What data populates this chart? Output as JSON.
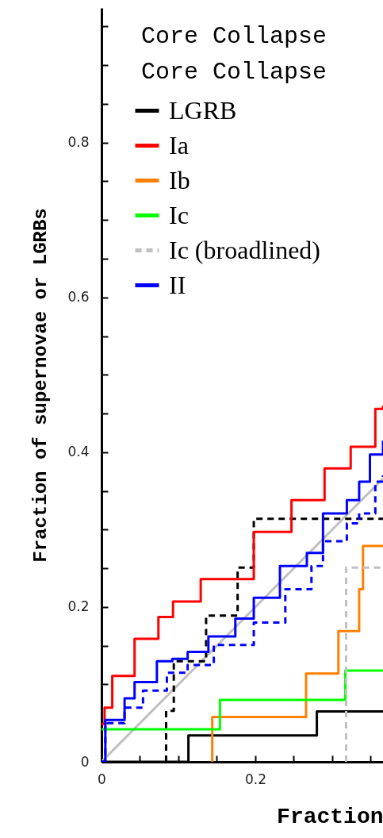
{
  "chart_data": {
    "type": "step",
    "xlabel": "Fraction",
    "ylabel": "Fraction of supernovae or LGRBs",
    "annotations": [
      "Core Collapse",
      "Core Collapse"
    ],
    "xlim": [
      0,
      0.366
    ],
    "ylim": [
      0,
      0.974
    ],
    "xticks": [
      0,
      {
        "value": 0.05,
        "label": null
      },
      {
        "value": 0.1,
        "label": null
      },
      {
        "value": 0.15,
        "label": null
      },
      0.2,
      {
        "value": 0.25,
        "label": null
      },
      {
        "value": 0.3,
        "label": null
      },
      {
        "value": 0.35,
        "label": null
      }
    ],
    "yticks": [
      0,
      {
        "value": 0.05,
        "label": null
      },
      {
        "value": 0.1,
        "label": null
      },
      {
        "value": 0.15,
        "label": null
      },
      0.2,
      {
        "value": 0.25,
        "label": null
      },
      {
        "value": 0.3,
        "label": null
      },
      {
        "value": 0.35,
        "label": null
      },
      0.4,
      {
        "value": 0.45,
        "label": null
      },
      {
        "value": 0.5,
        "label": null
      },
      {
        "value": 0.55,
        "label": null
      },
      0.6,
      {
        "value": 0.65,
        "label": null
      },
      {
        "value": 0.7,
        "label": null
      },
      {
        "value": 0.75,
        "label": null
      },
      0.8,
      {
        "value": 0.85,
        "label": null
      },
      {
        "value": 0.9,
        "label": null
      },
      {
        "value": 0.95,
        "label": null
      }
    ],
    "grid": false,
    "legend": "top left",
    "series": [
      {
        "type": "line",
        "color": "#c0c0c0",
        "line_style": "solid",
        "x": [
          0,
          0.366
        ],
        "values": [
          0,
          0.366
        ]
      },
      {
        "color": "#000000",
        "line_style": "dashed",
        "x": [
          0.084,
          0.084,
          0.094,
          0.136,
          0.177,
          0.198,
          0.366
        ],
        "values": [
          0,
          0.066,
          0.13,
          0.189,
          0.251,
          0.314,
          0.314
        ]
      },
      {
        "color": "#0000ff",
        "line_style": "dashed",
        "x": [
          0,
          0.005,
          0.03,
          0.054,
          0.085,
          0.112,
          0.146,
          0.198,
          0.239,
          0.273,
          0.288,
          0.319,
          0.335,
          0.356,
          0.366
        ],
        "values": [
          0,
          0.05,
          0.07,
          0.092,
          0.115,
          0.125,
          0.151,
          0.18,
          0.223,
          0.253,
          0.285,
          0.308,
          0.321,
          0.362,
          0.37
        ]
      },
      {
        "name": "LGRB",
        "color": "#000000",
        "line_style": "solid",
        "x": [
          0,
          0.113,
          0.28,
          0.366
        ],
        "values": [
          0,
          0.034,
          0.065,
          0.065
        ]
      },
      {
        "name": "Ia",
        "color": "#ff0000",
        "line_style": "solid",
        "x": [
          0,
          0.004,
          0.014,
          0.043,
          0.074,
          0.093,
          0.129,
          0.198,
          0.247,
          0.29,
          0.324,
          0.356,
          0.366
        ],
        "values": [
          0.049,
          0.07,
          0.111,
          0.159,
          0.187,
          0.207,
          0.236,
          0.297,
          0.338,
          0.379,
          0.407,
          0.456,
          0.46
        ]
      },
      {
        "name": "Ib",
        "color": "#ff8000",
        "line_style": "solid",
        "x": [
          0.144,
          0.144,
          0.266,
          0.308,
          0.335,
          0.34,
          0.366
        ],
        "values": [
          0,
          0.058,
          0.114,
          0.169,
          0.223,
          0.279,
          0.279
        ]
      },
      {
        "name": "Ic",
        "color": "#00ff00",
        "line_style": "solid",
        "x": [
          0,
          0.154,
          0.317,
          0.366
        ],
        "values": [
          0.042,
          0.08,
          0.118,
          0.118
        ]
      },
      {
        "name": "Ic (broadlined)",
        "color": "#c0c0c0",
        "line_style": "dashed",
        "x": [
          0.318,
          0.318,
          0.366
        ],
        "values": [
          0,
          0.251,
          0.251
        ]
      },
      {
        "name": "II",
        "color": "#0000ff",
        "line_style": "solid",
        "x": [
          0,
          0.005,
          0.03,
          0.043,
          0.072,
          0.092,
          0.112,
          0.139,
          0.174,
          0.198,
          0.232,
          0.267,
          0.288,
          0.319,
          0.335,
          0.349,
          0.366
        ],
        "values": [
          0,
          0.054,
          0.082,
          0.103,
          0.13,
          0.133,
          0.142,
          0.162,
          0.185,
          0.212,
          0.253,
          0.27,
          0.321,
          0.338,
          0.362,
          0.397,
          0.415
        ]
      }
    ]
  }
}
